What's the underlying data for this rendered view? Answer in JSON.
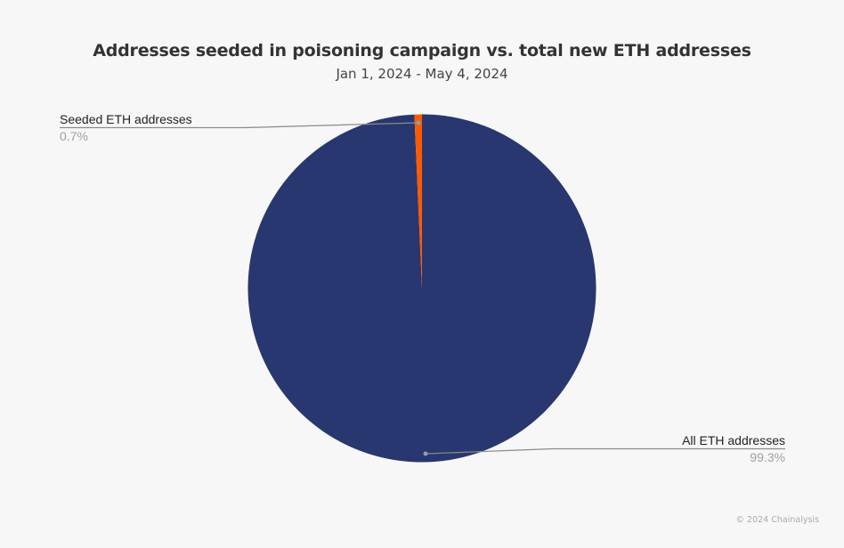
{
  "chart_data": {
    "type": "pie",
    "title": "Addresses seeded in poisoning campaign vs. total new ETH addresses",
    "subtitle": "Jan 1, 2024 - May 4, 2024",
    "slices": [
      {
        "label": "Seeded ETH addresses",
        "value": 0.7,
        "display": "0.7%",
        "color": "#ff5a00"
      },
      {
        "label": "All ETH addresses",
        "value": 99.3,
        "display": "99.3%",
        "color": "#28376f"
      }
    ],
    "legend": "none (callout labels)",
    "source": "© 2024 Chainalysis"
  },
  "labels": {
    "seeded_name": "Seeded ETH addresses",
    "seeded_pct": "0.7%",
    "all_name": "All ETH addresses",
    "all_pct": "99.3%"
  },
  "footer": {
    "copyright": "© 2024 Chainalysis"
  }
}
